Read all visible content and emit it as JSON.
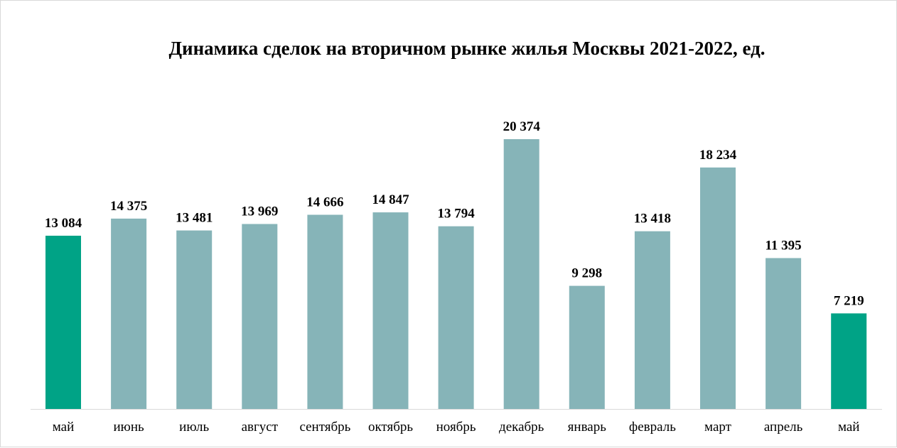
{
  "chart_data": {
    "type": "bar",
    "title": "Динамика сделок на вторичном рынке жилья Москвы 2021-2022, ед.",
    "categories": [
      "май",
      "июнь",
      "июль",
      "август",
      "сентябрь",
      "октябрь",
      "ноябрь",
      "декабрь",
      "январь",
      "февраль",
      "март",
      "апрель",
      "май"
    ],
    "values": [
      13084,
      14375,
      13481,
      13969,
      14666,
      14847,
      13794,
      20374,
      9298,
      13418,
      18234,
      11395,
      7219
    ],
    "value_labels": [
      "13 084",
      "14 375",
      "13 481",
      "13 969",
      "14 666",
      "14 847",
      "13 794",
      "20 374",
      "9 298",
      "13 418",
      "18 234",
      "11 395",
      "7 219"
    ],
    "ylim": [
      0,
      20374
    ],
    "grid": false,
    "legend": "none",
    "colors": {
      "default": "#86b4b8",
      "highlight": "#00a386",
      "highlight_indices": [
        0,
        12
      ]
    }
  }
}
